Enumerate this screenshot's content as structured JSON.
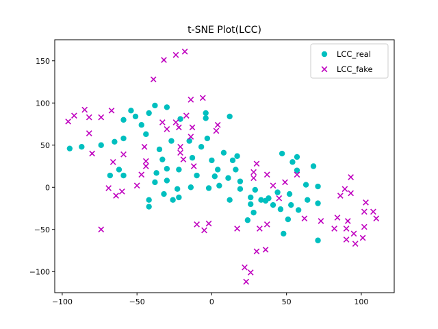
{
  "chart_data": {
    "type": "scatter",
    "title": "t-SNE Plot(LCC)",
    "xlabel": "",
    "ylabel": "",
    "xlim": [
      -105,
      122
    ],
    "ylim": [
      -125,
      175
    ],
    "xticks": [
      -100,
      -50,
      0,
      50,
      100
    ],
    "yticks": [
      -100,
      -50,
      0,
      50,
      100,
      150
    ],
    "legend_position": "top-right",
    "grid": false,
    "series": [
      {
        "name": "LCC_real",
        "marker": "circle",
        "color": "#00bfbf",
        "points": [
          [
            -95,
            46
          ],
          [
            -87,
            48
          ],
          [
            -74,
            50
          ],
          [
            -68,
            14
          ],
          [
            -65,
            54
          ],
          [
            -62,
            21
          ],
          [
            -59,
            80
          ],
          [
            -59,
            14
          ],
          [
            -59,
            58
          ],
          [
            -54,
            91
          ],
          [
            -51,
            84
          ],
          [
            -47,
            74
          ],
          [
            -44,
            63
          ],
          [
            -42,
            88
          ],
          [
            -42,
            -15
          ],
          [
            -42,
            -23
          ],
          [
            -38,
            97
          ],
          [
            -38,
            6
          ],
          [
            -37,
            17
          ],
          [
            -35,
            45
          ],
          [
            -33,
            33
          ],
          [
            -32,
            -8
          ],
          [
            -30,
            95
          ],
          [
            -30,
            22
          ],
          [
            -30,
            8
          ],
          [
            -27,
            55
          ],
          [
            -26,
            -15
          ],
          [
            -23,
            -2
          ],
          [
            -22,
            21
          ],
          [
            -22,
            -12
          ],
          [
            -21,
            81
          ],
          [
            -15,
            55
          ],
          [
            -14,
            0
          ],
          [
            -13,
            35
          ],
          [
            -10,
            14
          ],
          [
            -7,
            48
          ],
          [
            -4,
            88
          ],
          [
            -4,
            82
          ],
          [
            -3,
            58
          ],
          [
            -2,
            -1
          ],
          [
            0,
            32
          ],
          [
            2,
            13
          ],
          [
            4,
            21
          ],
          [
            5,
            2
          ],
          [
            8,
            41
          ],
          [
            11,
            11
          ],
          [
            12,
            84
          ],
          [
            12,
            -15
          ],
          [
            14,
            32
          ],
          [
            16,
            21
          ],
          [
            17,
            37
          ],
          [
            19,
            -2
          ],
          [
            19,
            7
          ],
          [
            24,
            -39
          ],
          [
            26,
            -12
          ],
          [
            26,
            -20
          ],
          [
            28,
            -30
          ],
          [
            29,
            -3
          ],
          [
            33,
            -15
          ],
          [
            36,
            -16
          ],
          [
            38,
            -13
          ],
          [
            41,
            -21
          ],
          [
            44,
            -6
          ],
          [
            46,
            -26
          ],
          [
            47,
            40
          ],
          [
            48,
            -55
          ],
          [
            51,
            -38
          ],
          [
            52,
            -8
          ],
          [
            53,
            -21
          ],
          [
            54,
            30
          ],
          [
            57,
            20
          ],
          [
            57,
            36
          ],
          [
            58,
            -27
          ],
          [
            63,
            3
          ],
          [
            64,
            -15
          ],
          [
            68,
            25
          ],
          [
            71,
            1
          ],
          [
            71,
            -19
          ],
          [
            71,
            -63
          ]
        ]
      },
      {
        "name": "LCC_fake",
        "marker": "x",
        "color": "#bf00bf",
        "points": [
          [
            -96,
            78
          ],
          [
            -92,
            85
          ],
          [
            -85,
            92
          ],
          [
            -82,
            83
          ],
          [
            -82,
            64
          ],
          [
            -80,
            40
          ],
          [
            -74,
            83
          ],
          [
            -74,
            -50
          ],
          [
            -69,
            -1
          ],
          [
            -67,
            91
          ],
          [
            -66,
            30
          ],
          [
            -64,
            -10
          ],
          [
            -60,
            -5
          ],
          [
            -59,
            39
          ],
          [
            -50,
            2
          ],
          [
            -47,
            15
          ],
          [
            -45,
            48
          ],
          [
            -44,
            25
          ],
          [
            -44,
            31
          ],
          [
            -39,
            128
          ],
          [
            -33,
            77
          ],
          [
            -32,
            151
          ],
          [
            -30,
            69
          ],
          [
            -24,
            77
          ],
          [
            -24,
            157
          ],
          [
            -22,
            71
          ],
          [
            -21,
            41
          ],
          [
            -21,
            48
          ],
          [
            -19,
            33
          ],
          [
            -18,
            161
          ],
          [
            -17,
            85
          ],
          [
            -14,
            104
          ],
          [
            -14,
            60
          ],
          [
            -13,
            71
          ],
          [
            -12,
            25
          ],
          [
            -10,
            -44
          ],
          [
            -6,
            106
          ],
          [
            -5,
            -51
          ],
          [
            -2,
            -43
          ],
          [
            3,
            67
          ],
          [
            4,
            74
          ],
          [
            17,
            -49
          ],
          [
            22,
            -95
          ],
          [
            23,
            -112
          ],
          [
            26,
            -101
          ],
          [
            28,
            18
          ],
          [
            28,
            11
          ],
          [
            30,
            -76
          ],
          [
            30,
            28
          ],
          [
            32,
            -49
          ],
          [
            36,
            -74
          ],
          [
            37,
            15
          ],
          [
            37,
            -44
          ],
          [
            41,
            2
          ],
          [
            45,
            -13
          ],
          [
            49,
            6
          ],
          [
            57,
            15
          ],
          [
            62,
            -37
          ],
          [
            73,
            -40
          ],
          [
            82,
            -49
          ],
          [
            84,
            -36
          ],
          [
            86,
            -10
          ],
          [
            89,
            -2
          ],
          [
            90,
            -49
          ],
          [
            90,
            -62
          ],
          [
            91,
            -40
          ],
          [
            93,
            -7
          ],
          [
            93,
            12
          ],
          [
            95,
            -55
          ],
          [
            96,
            -67
          ],
          [
            101,
            -60
          ],
          [
            102,
            -29
          ],
          [
            102,
            -47
          ],
          [
            103,
            -18
          ],
          [
            108,
            -29
          ],
          [
            110,
            -37
          ]
        ]
      }
    ]
  }
}
